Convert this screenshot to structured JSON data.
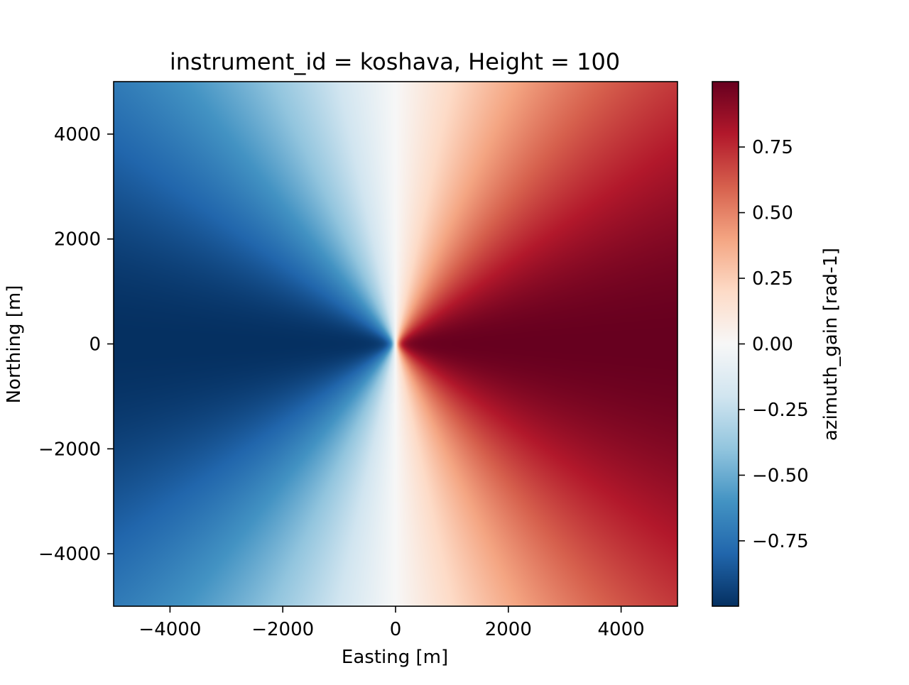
{
  "chart_data": {
    "type": "heatmap",
    "title": "instrument_id = koshava, Height = 100",
    "xlabel": "Easting [m]",
    "ylabel": "Northing [m]",
    "xlim": [
      -5000,
      5000
    ],
    "ylim": [
      -5000,
      5000
    ],
    "x_ticks": [
      -4000,
      -2000,
      0,
      2000,
      4000
    ],
    "x_tick_labels": [
      "−4000",
      "−2000",
      "0",
      "2000",
      "4000"
    ],
    "y_ticks": [
      -4000,
      -2000,
      0,
      2000,
      4000
    ],
    "y_tick_labels": [
      "−4000",
      "−2000",
      "0",
      "2000",
      "4000"
    ],
    "colorbar": {
      "label": "azimuth_gain [rad-1]",
      "vmin": -0.999,
      "vmax": 0.999,
      "ticks": [
        -0.75,
        -0.5,
        -0.25,
        0.0,
        0.25,
        0.5,
        0.75
      ],
      "tick_labels": [
        "−0.75",
        "−0.50",
        "−0.25",
        "0.00",
        "0.25",
        "0.50",
        "0.75"
      ],
      "colormap": "RdBu_r"
    },
    "field": {
      "description": "value = x / r, with r = sqrt(x^2 + y^2 + Height^2); -1 (dark blue) on west, +1 (dark red) on east, 0 along x = 0",
      "height": 100
    },
    "grid": false,
    "legend": "none"
  }
}
